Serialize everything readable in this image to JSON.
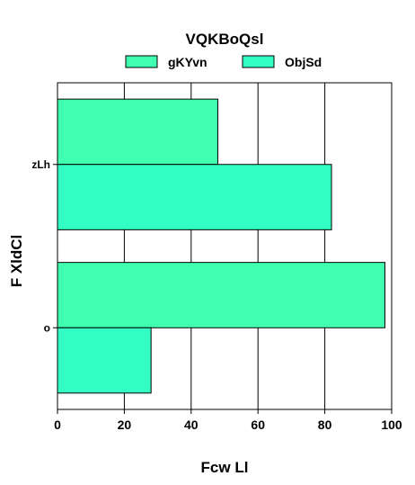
{
  "chart_data": {
    "type": "bar",
    "orientation": "horizontal",
    "title": "VQKBoQsl",
    "xlabel": "Fcw Ll",
    "ylabel": "F XldCl",
    "categories": [
      "zLh",
      "o"
    ],
    "series": [
      {
        "name": "gKYvn",
        "values": [
          48,
          98
        ],
        "color": "#40ffb0"
      },
      {
        "name": "ObjSd",
        "values": [
          82,
          28
        ],
        "color": "#33ffc4"
      }
    ],
    "xlim": [
      0,
      100
    ],
    "xticks": [
      0,
      20,
      40,
      60,
      80,
      100
    ],
    "grid": true,
    "legend_position": "top"
  }
}
